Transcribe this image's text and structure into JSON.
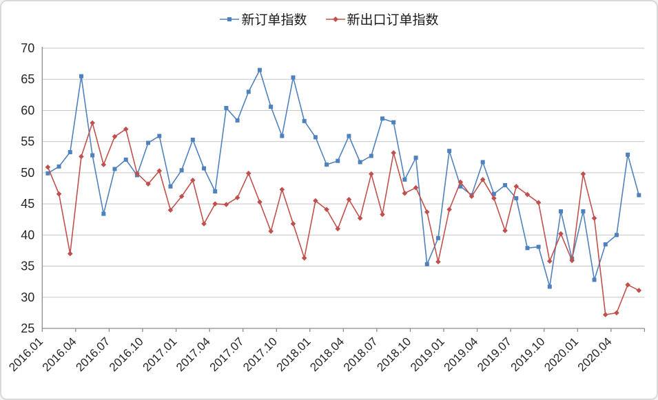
{
  "window": {
    "background": "#ffffff",
    "border_color": "#d9d9d9"
  },
  "legend": {
    "items": [
      {
        "label": "新订单指数",
        "color": "#4F81BD",
        "marker": "square"
      },
      {
        "label": "新出口订单指数",
        "color": "#C0504D",
        "marker": "diamond"
      }
    ]
  },
  "style": {
    "grid_color": "#c6c6c6",
    "axis_color": "#8c8c8c",
    "text_color": "#262626",
    "tick_font_size": 18,
    "x_label_font_size": 17
  },
  "chart_data": {
    "type": "line",
    "title": "",
    "xlabel": "",
    "ylabel": "",
    "ylim": [
      25,
      70
    ],
    "y_ticks": [
      25,
      30,
      35,
      40,
      45,
      50,
      55,
      60,
      65,
      70
    ],
    "grid": "horizontal",
    "legend_position": "top-center",
    "x_tick_labels": [
      "2016.01",
      "2016.04",
      "2016.07",
      "2016.10",
      "2017.01",
      "2017.04",
      "2017.07",
      "2017.10",
      "2018.01",
      "2018.04",
      "2018.07",
      "2018.10",
      "2019.01",
      "2019.04",
      "2019.07",
      "2019.10",
      "2020.01",
      "2020.04"
    ],
    "categories": [
      "2016.01",
      "2016.02",
      "2016.03",
      "2016.04",
      "2016.05",
      "2016.06",
      "2016.07",
      "2016.08",
      "2016.09",
      "2016.10",
      "2016.11",
      "2016.12",
      "2017.01",
      "2017.02",
      "2017.03",
      "2017.04",
      "2017.05",
      "2017.06",
      "2017.07",
      "2017.08",
      "2017.09",
      "2017.10",
      "2017.11",
      "2017.12",
      "2018.01",
      "2018.02",
      "2018.03",
      "2018.04",
      "2018.05",
      "2018.06",
      "2018.07",
      "2018.08",
      "2018.09",
      "2018.10",
      "2018.11",
      "2018.12",
      "2019.01",
      "2019.02",
      "2019.03",
      "2019.04",
      "2019.05",
      "2019.06",
      "2019.07",
      "2019.08",
      "2019.09",
      "2019.10",
      "2019.11",
      "2019.12",
      "2020.01",
      "2020.02",
      "2020.03",
      "2020.04",
      "2020.05",
      "2020.06"
    ],
    "series": [
      {
        "name": "新订单指数",
        "color": "#4F81BD",
        "marker": "square",
        "values": [
          49.9,
          51.0,
          53.3,
          65.5,
          52.8,
          43.4,
          50.6,
          52.1,
          49.6,
          54.8,
          55.9,
          47.8,
          50.4,
          55.3,
          50.7,
          47.0,
          60.4,
          58.4,
          63.0,
          66.5,
          60.6,
          55.9,
          65.3,
          58.3,
          55.7,
          51.3,
          51.9,
          55.9,
          51.7,
          52.7,
          58.7,
          58.1,
          48.9,
          52.4,
          35.3,
          39.5,
          53.5,
          47.8,
          46.4,
          51.7,
          46.6,
          48.0,
          45.9,
          37.9,
          38.1,
          31.7,
          43.8,
          36.2,
          43.8,
          32.8,
          38.5,
          40.0,
          52.9,
          46.4
        ]
      },
      {
        "name": "新出口订单指数",
        "color": "#C0504D",
        "marker": "diamond",
        "values": [
          50.9,
          46.6,
          37.0,
          52.6,
          58.0,
          51.3,
          55.8,
          57.0,
          49.9,
          48.2,
          50.3,
          44.0,
          46.2,
          48.8,
          41.8,
          45.0,
          44.9,
          46.0,
          49.9,
          45.3,
          40.6,
          47.3,
          41.8,
          36.3,
          45.5,
          44.1,
          41.0,
          45.7,
          42.7,
          49.8,
          43.3,
          53.2,
          46.7,
          47.6,
          43.7,
          35.7,
          44.1,
          48.5,
          46.2,
          48.9,
          45.9,
          40.7,
          47.8,
          46.5,
          45.2,
          35.8,
          40.2,
          35.9,
          49.8,
          42.7,
          27.2,
          27.5,
          32.0,
          31.1
        ]
      }
    ]
  }
}
